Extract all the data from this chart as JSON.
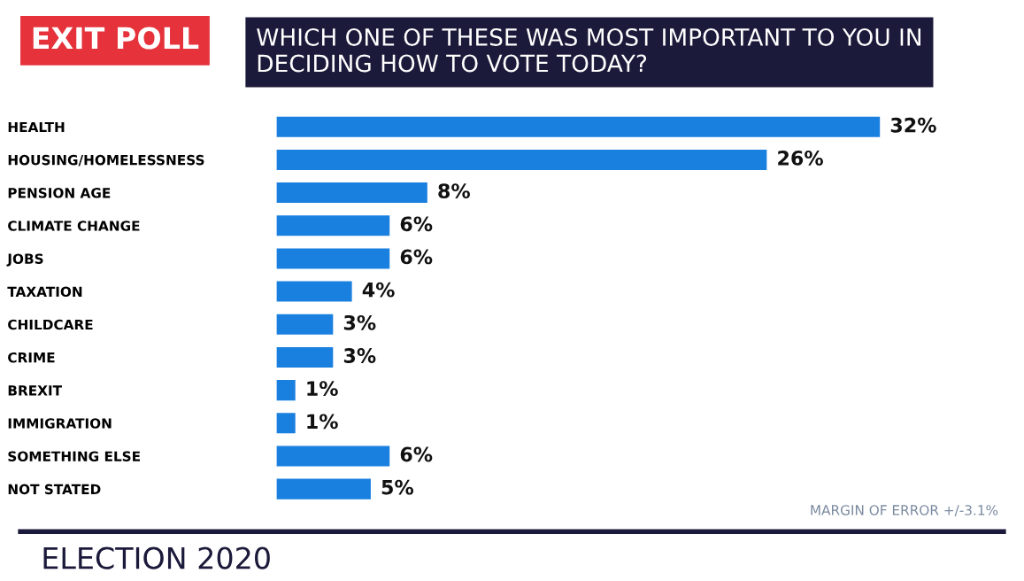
{
  "chart_data": {
    "type": "bar",
    "orientation": "horizontal",
    "title": "EXIT POLL",
    "subtitle": "WHICH ONE OF THESE WAS MOST IMPORTANT TO YOU IN DECIDING HOW TO VOTE TODAY?",
    "categories": [
      "HEALTH",
      "HOUSING/HOMELESSNESS",
      "PENSION AGE",
      "CLIMATE CHANGE",
      "JOBS",
      "TAXATION",
      "CHILDCARE",
      "CRIME",
      "BREXIT",
      "IMMIGRATION",
      "SOMETHING ELSE",
      "NOT STATED"
    ],
    "values": [
      32,
      26,
      8,
      6,
      6,
      4,
      3,
      3,
      1,
      1,
      6,
      5
    ],
    "value_labels": [
      "32%",
      "26%",
      "8%",
      "6%",
      "6%",
      "4%",
      "3%",
      "3%",
      "1%",
      "1%",
      "6%",
      "5%"
    ],
    "color": "#1a80e0",
    "annotations": [
      "MARGIN OF ERROR +/-3.1%",
      "ELECTION 2020"
    ]
  }
}
